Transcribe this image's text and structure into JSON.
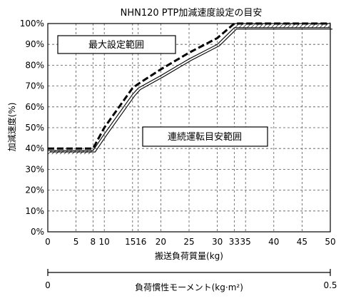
{
  "chart_data": {
    "type": "line",
    "title": "NHN120 PTP加減速度設定の目安",
    "xlabel": "搬送負荷質量(kg)",
    "ylabel": "加減速度(%)",
    "xlim": [
      0,
      50
    ],
    "ylim": [
      0,
      100
    ],
    "x_ticks": [
      0,
      5,
      8,
      10,
      15,
      16,
      20,
      25,
      30,
      33,
      35,
      40,
      45,
      50
    ],
    "x_tick_labels": [
      "0",
      "5",
      "8",
      "10",
      "15",
      "16",
      "20",
      "25",
      "30",
      "33",
      "35",
      "40",
      "45",
      "50"
    ],
    "y_ticks": [
      0,
      10,
      20,
      30,
      40,
      50,
      60,
      70,
      80,
      90,
      100
    ],
    "y_tick_labels": [
      "0%",
      "10%",
      "20%",
      "30%",
      "40%",
      "50%",
      "60%",
      "70%",
      "80%",
      "90%",
      "100%"
    ],
    "grid": true,
    "series": [
      {
        "style": "dashed-bold",
        "points": [
          [
            0,
            40
          ],
          [
            8,
            40
          ],
          [
            10,
            50
          ],
          [
            15,
            69
          ],
          [
            16,
            71
          ],
          [
            20,
            78
          ],
          [
            25,
            86
          ],
          [
            30,
            93
          ],
          [
            33,
            100
          ],
          [
            50,
            100
          ]
        ]
      },
      {
        "style": "double-thin",
        "points": [
          [
            0,
            39
          ],
          [
            8,
            39
          ],
          [
            10,
            47
          ],
          [
            15,
            66
          ],
          [
            16,
            69
          ],
          [
            20,
            75
          ],
          [
            25,
            83
          ],
          [
            30,
            90
          ],
          [
            33,
            98
          ],
          [
            50,
            98
          ]
        ]
      }
    ],
    "annotations": [
      {
        "text": "最大設定範囲",
        "region": "above"
      },
      {
        "text": "連続運転目安範囲",
        "region": "below"
      }
    ],
    "secondary_axis": {
      "label": "負荷慣性モーメント(kg·m²)",
      "min_label": "0",
      "max_label": "0.5"
    }
  }
}
